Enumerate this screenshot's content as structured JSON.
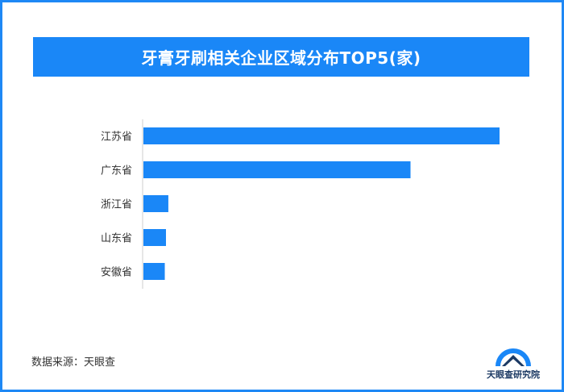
{
  "chart_data": {
    "type": "bar",
    "orientation": "horizontal",
    "title": "牙膏牙刷相关企业区域分布TOP5(家)",
    "categories": [
      "江苏省",
      "广东省",
      "浙江省",
      "山东省",
      "安徽省"
    ],
    "values": [
      1500,
      1125,
      105,
      95,
      90
    ],
    "bar_color": "#1a87f7",
    "grid": false,
    "value_axis_visible": false
  },
  "footer": {
    "source": "数据来源：天眼查",
    "logo_text": "天眼查研究院"
  },
  "colors": {
    "frame": "#1e88f5",
    "title_bg": "#1a87f7",
    "logo_dark": "#1c3a64"
  }
}
